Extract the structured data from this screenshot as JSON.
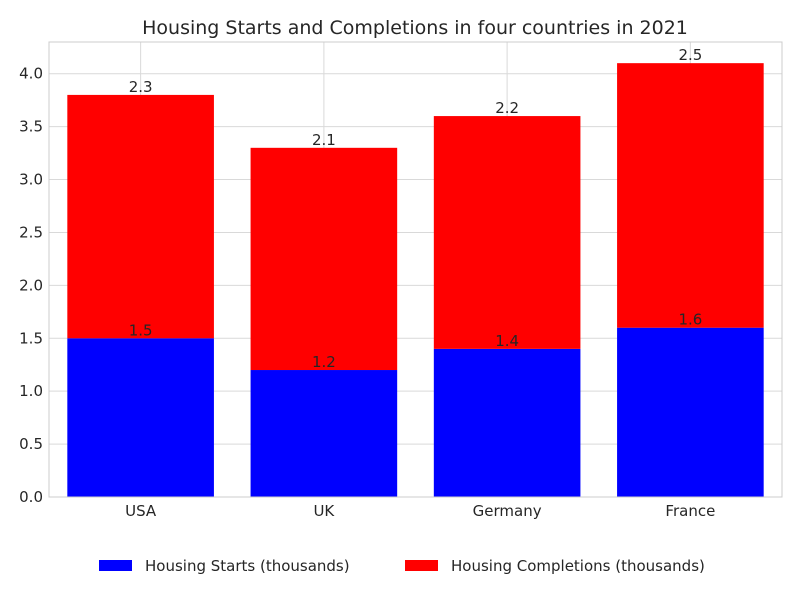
{
  "chart_data": {
    "type": "bar",
    "stacked": true,
    "title": "Housing Starts and Completions in four countries in 2021",
    "xlabel": "",
    "ylabel": "",
    "categories": [
      "USA",
      "UK",
      "Germany",
      "France"
    ],
    "series": [
      {
        "name": "Housing Starts (thousands)",
        "values": [
          1.5,
          1.2,
          1.4,
          1.6
        ],
        "color": "#0000ff"
      },
      {
        "name": "Housing Completions (thousands)",
        "values": [
          2.3,
          2.1,
          2.2,
          2.5
        ],
        "color": "#ff0000"
      }
    ],
    "ylim": [
      0,
      4.3
    ],
    "yticks": [
      "0.0",
      "0.5",
      "1.0",
      "1.5",
      "2.0",
      "2.5",
      "3.0",
      "3.5",
      "4.0"
    ],
    "grid": true,
    "legend_position": "bottom-center"
  }
}
